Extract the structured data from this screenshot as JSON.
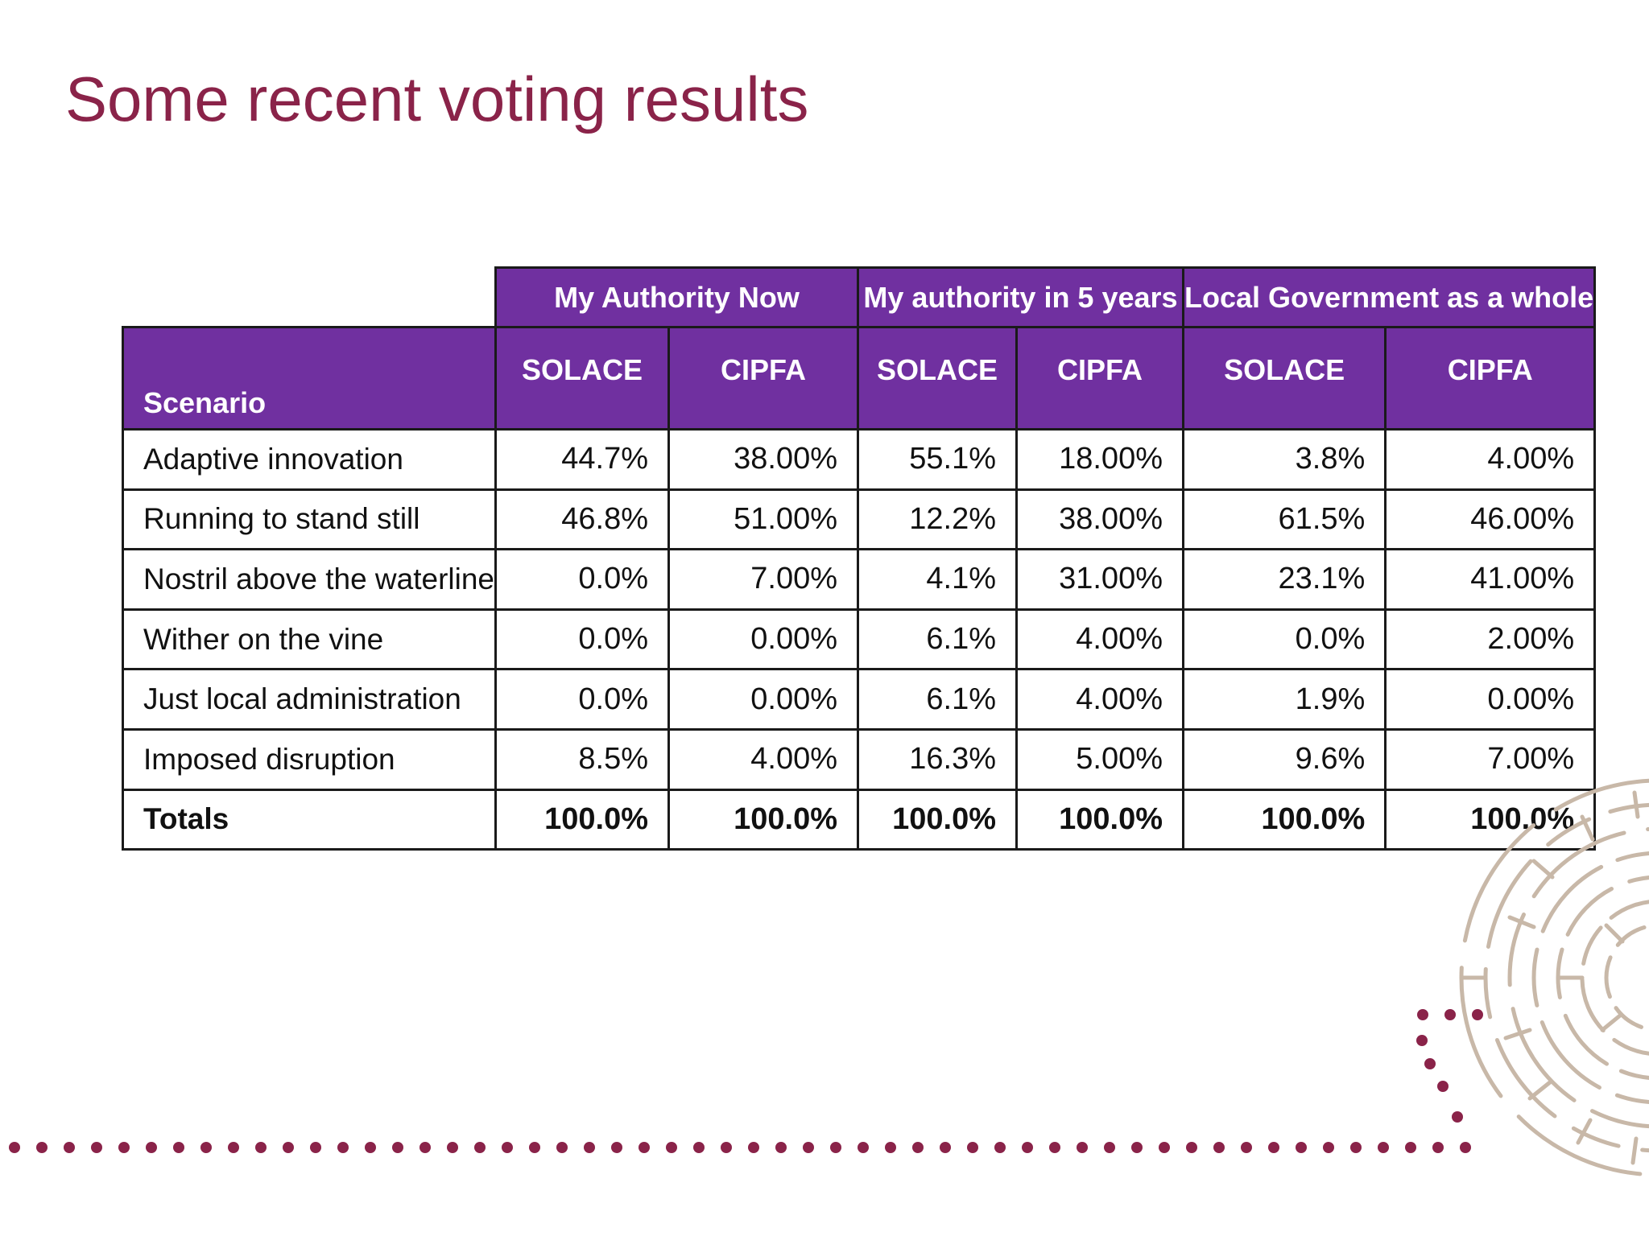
{
  "slide": {
    "title": "Some recent voting results"
  },
  "table": {
    "groups": [
      {
        "label": "My Authority Now"
      },
      {
        "label": "My authority in 5 years"
      },
      {
        "label": "Local Government as a whole"
      }
    ],
    "scenario_header": "Scenario",
    "sub_headers": [
      "SOLACE",
      "CIPFA",
      "SOLACE",
      "CIPFA",
      "SOLACE",
      "CIPFA"
    ],
    "rows": [
      {
        "scenario": "Adaptive innovation",
        "values": [
          "44.7%",
          "38.00%",
          "55.1%",
          "18.00%",
          "3.8%",
          "4.00%"
        ]
      },
      {
        "scenario": "Running to stand still",
        "values": [
          "46.8%",
          "51.00%",
          "12.2%",
          "38.00%",
          "61.5%",
          "46.00%"
        ]
      },
      {
        "scenario": "Nostril above the waterline",
        "values": [
          "0.0%",
          "7.00%",
          "4.1%",
          "31.00%",
          "23.1%",
          "41.00%"
        ]
      },
      {
        "scenario": "Wither on the vine",
        "values": [
          "0.0%",
          "0.00%",
          "6.1%",
          "4.00%",
          "0.0%",
          "2.00%"
        ]
      },
      {
        "scenario": "Just local administration",
        "values": [
          "0.0%",
          "0.00%",
          "6.1%",
          "4.00%",
          "1.9%",
          "0.00%"
        ]
      },
      {
        "scenario": "Imposed disruption",
        "values": [
          "8.5%",
          "4.00%",
          "16.3%",
          "5.00%",
          "9.6%",
          "7.00%"
        ]
      }
    ],
    "totals": {
      "label": "Totals",
      "values": [
        "100.0%",
        "100.0%",
        "100.0%",
        "100.0%",
        "100.0%",
        "100.0%"
      ]
    }
  },
  "colors": {
    "title": "#8a2349",
    "header_fill": "#7030a0",
    "dots": "#8a2349",
    "maze": "#c8b8a8"
  },
  "decorations": [
    "dotted-line",
    "maze-circle-logo"
  ]
}
